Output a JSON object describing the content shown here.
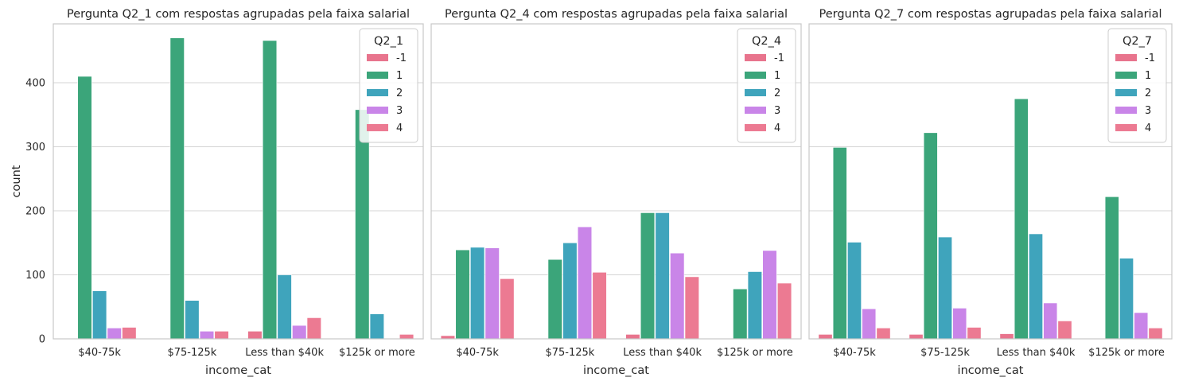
{
  "chart_data": [
    {
      "type": "bar",
      "title": "Pergunta Q2_1 com respostas agrupadas pela faixa salarial",
      "xlabel": "income_cat",
      "ylabel": "count",
      "categories": [
        "$40-75k",
        "$75-125k",
        "Less than $40k",
        "$125k or more"
      ],
      "ylim": [
        0,
        492
      ],
      "yticks": [
        "0",
        "100",
        "200",
        "300",
        "400"
      ],
      "grid": true,
      "legend": {
        "title": "Q2_1",
        "position": "top-right"
      },
      "series": [
        {
          "name": "-1",
          "color": "#e8748d",
          "values": [
            0,
            0,
            12,
            0
          ]
        },
        {
          "name": "1",
          "color": "#3ba57a",
          "values": [
            410,
            470,
            466,
            358
          ]
        },
        {
          "name": "2",
          "color": "#3fa4bc",
          "values": [
            75,
            60,
            100,
            39
          ]
        },
        {
          "name": "3",
          "color": "#c985e8",
          "values": [
            17,
            12,
            21,
            0
          ]
        },
        {
          "name": "4",
          "color": "#ec7a92",
          "values": [
            18,
            12,
            33,
            7
          ]
        }
      ]
    },
    {
      "type": "bar",
      "title": "Pergunta Q2_4 com respostas agrupadas pela faixa salarial",
      "xlabel": "income_cat",
      "ylabel": "",
      "categories": [
        "$40-75k",
        "$75-125k",
        "Less than $40k",
        "$125k or more"
      ],
      "ylim": [
        0,
        492
      ],
      "yticks": [],
      "grid": true,
      "legend": {
        "title": "Q2_4",
        "position": "top-right"
      },
      "series": [
        {
          "name": "-1",
          "color": "#e8748d",
          "values": [
            5,
            0,
            7,
            0
          ]
        },
        {
          "name": "1",
          "color": "#3ba57a",
          "values": [
            139,
            124,
            197,
            78
          ]
        },
        {
          "name": "2",
          "color": "#3fa4bc",
          "values": [
            143,
            150,
            197,
            105
          ]
        },
        {
          "name": "3",
          "color": "#c985e8",
          "values": [
            142,
            175,
            134,
            138
          ]
        },
        {
          "name": "4",
          "color": "#ec7a92",
          "values": [
            94,
            104,
            97,
            87
          ]
        }
      ]
    },
    {
      "type": "bar",
      "title": "Pergunta Q2_7 com respostas agrupadas pela faixa salarial",
      "xlabel": "income_cat",
      "ylabel": "",
      "categories": [
        "$40-75k",
        "$75-125k",
        "Less than $40k",
        "$125k or more"
      ],
      "ylim": [
        0,
        492
      ],
      "yticks": [],
      "grid": true,
      "legend": {
        "title": "Q2_7",
        "position": "top-right"
      },
      "series": [
        {
          "name": "-1",
          "color": "#e8748d",
          "values": [
            7,
            7,
            8,
            0
          ]
        },
        {
          "name": "1",
          "color": "#3ba57a",
          "values": [
            299,
            322,
            375,
            222
          ]
        },
        {
          "name": "2",
          "color": "#3fa4bc",
          "values": [
            151,
            159,
            164,
            126
          ]
        },
        {
          "name": "3",
          "color": "#c985e8",
          "values": [
            47,
            48,
            56,
            41
          ]
        },
        {
          "name": "4",
          "color": "#ec7a92",
          "values": [
            17,
            18,
            28,
            17
          ]
        }
      ]
    }
  ]
}
